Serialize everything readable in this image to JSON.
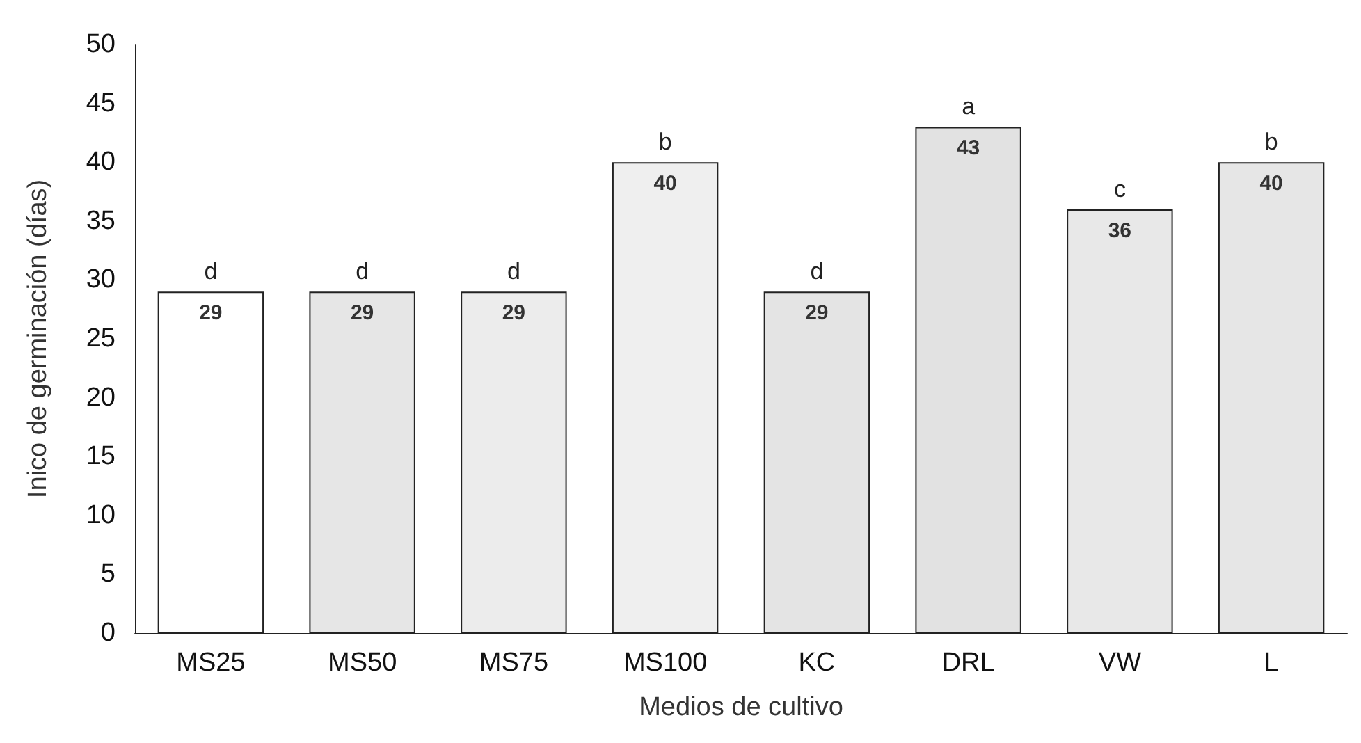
{
  "chart_data": {
    "type": "bar",
    "xlabel": "Medios de cultivo",
    "ylabel": "Inico de germinación (días)",
    "categories": [
      "MS25",
      "MS50",
      "MS75",
      "MS100",
      "KC",
      "DRL",
      "VW",
      "L"
    ],
    "values": [
      29,
      29,
      29,
      40,
      29,
      43,
      36,
      40
    ],
    "colors": [
      "#ffffff",
      "#e6e6e6",
      "#ececec",
      "#efefef",
      "#e4e4e4",
      "#e2e2e2",
      "#e8e8e8",
      "#e6e6e6"
    ],
    "ylim": [
      0,
      50
    ],
    "yticks": [
      0,
      5,
      10,
      15,
      20,
      25,
      30,
      35,
      40,
      45,
      50
    ],
    "data_labels": true,
    "grid": false,
    "annotations": [
      {
        "text": "d",
        "x": "MS25",
        "y": 29
      },
      {
        "text": "d",
        "x": "MS50",
        "y": 29
      },
      {
        "text": "d",
        "x": "MS75",
        "y": 29
      },
      {
        "text": "b",
        "x": "MS100",
        "y": 40
      },
      {
        "text": "d",
        "x": "KC",
        "y": 29
      },
      {
        "text": "a",
        "x": "DRL",
        "y": 43
      },
      {
        "text": "c",
        "x": "VW",
        "y": 36
      },
      {
        "text": "b",
        "x": "L",
        "y": 40
      }
    ]
  }
}
